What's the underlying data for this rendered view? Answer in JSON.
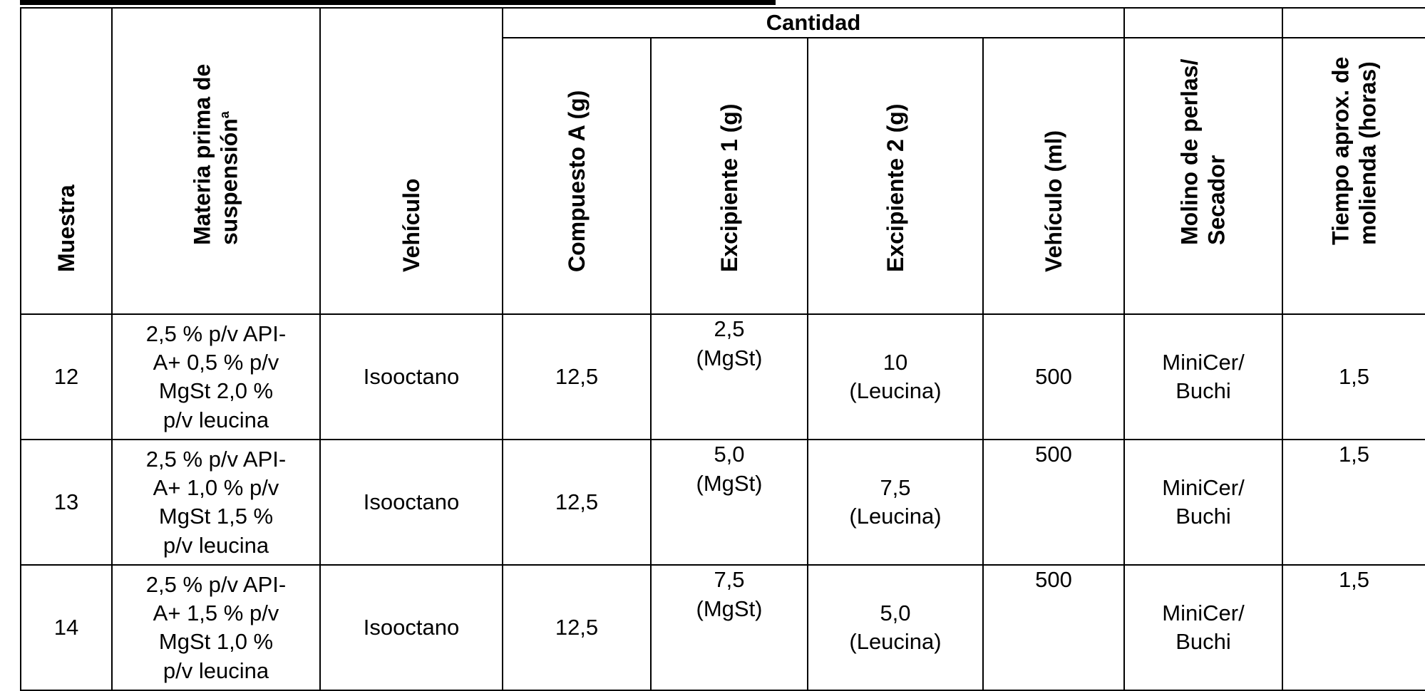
{
  "table": {
    "group_header": "Cantidad",
    "headers": {
      "muestra": "Muestra",
      "materia": "Materia prima de suspensión",
      "materia_sup": "a",
      "vehiculo": "Vehículo",
      "compuesto": "Compuesto A (g)",
      "excipiente1": "Excipiente 1 (g)",
      "excipiente2": "Excipiente 2 (g)",
      "vehiculo_ml": "Vehículo (ml)",
      "molino": "Molino de perlas/ Secador",
      "tiempo": "Tiempo aprox. de molienda (horas)"
    },
    "rows": [
      {
        "muestra": "12",
        "materia": "2,5 % p/v API-\nA+ 0,5 % p/v\nMgSt 2,0 %\np/v leucina",
        "vehiculo": "Isooctano",
        "compuesto": "12,5",
        "excipiente1": "2,5\n(MgSt)",
        "excipiente2": "10\n(Leucina)",
        "vehiculo_ml": "500",
        "molino": "MiniCer/\nBuchi",
        "tiempo": "1,5"
      },
      {
        "muestra": "13",
        "materia": "2,5 % p/v API-\nA+ 1,0 % p/v\nMgSt 1,5 %\np/v leucina",
        "vehiculo": "Isooctano",
        "compuesto": "12,5",
        "excipiente1": "5,0\n(MgSt)",
        "excipiente2": "7,5\n(Leucina)",
        "vehiculo_ml": "500",
        "molino": "MiniCer/\nBuchi",
        "tiempo": "1,5"
      },
      {
        "muestra": "14",
        "materia": "2,5 % p/v API-\nA+ 1,5 % p/v\nMgSt 1,0 %\np/v leucina",
        "vehiculo": "Isooctano",
        "compuesto": "12,5",
        "excipiente1": "7,5\n(MgSt)",
        "excipiente2": "5,0\n(Leucina)",
        "vehiculo_ml": "500",
        "molino": "MiniCer/\nBuchi",
        "tiempo": "1,5"
      }
    ]
  }
}
